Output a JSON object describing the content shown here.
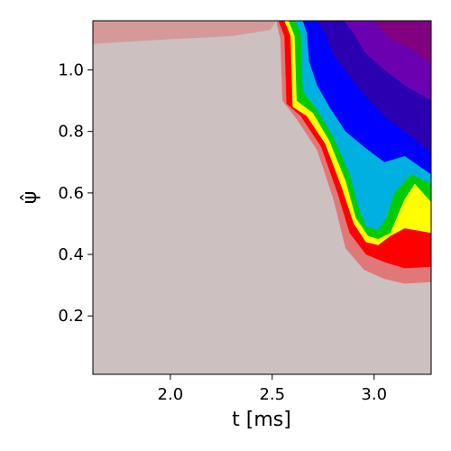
{
  "chart_data": {
    "type": "heatmap",
    "title": "",
    "xlabel": "t [ms]",
    "ylabel": "ψ̂",
    "xlim": [
      1.62,
      3.28
    ],
    "ylim": [
      0.01,
      1.16
    ],
    "grid": false,
    "legend": "none",
    "x_ticks": [
      {
        "value": 2.0,
        "label": "2.0"
      },
      {
        "value": 2.5,
        "label": "2.5"
      },
      {
        "value": 3.0,
        "label": "3.0"
      }
    ],
    "y_ticks": [
      {
        "value": 0.2,
        "label": "0.2"
      },
      {
        "value": 0.4,
        "label": "0.4"
      },
      {
        "value": 0.6,
        "label": "0.6"
      },
      {
        "value": 0.8,
        "label": "0.8"
      },
      {
        "value": 1.0,
        "label": "1.0"
      }
    ],
    "colormap": [
      "#ccc0c0",
      "#d49a9a",
      "#ff0000",
      "#ffff00",
      "#00cc00",
      "#0000ff",
      "#800080"
    ],
    "background_color": "#ccc0c0",
    "bands": [
      {
        "name": "",
        "color": "#d49a9a",
        "points": [
          [
            1.62,
            1.16
          ],
          [
            2.52,
            1.16
          ],
          [
            2.49,
            1.13
          ],
          [
            2.3,
            1.11
          ],
          [
            2.0,
            1.1
          ],
          [
            1.62,
            1.085
          ]
        ]
      },
      {
        "name": "",
        "color": "#e07878",
        "points": [
          [
            2.52,
            1.16
          ],
          [
            3.28,
            1.16
          ],
          [
            3.28,
            0.31
          ],
          [
            3.15,
            0.305
          ],
          [
            3.05,
            0.32
          ],
          [
            2.95,
            0.35
          ],
          [
            2.86,
            0.42
          ],
          [
            2.8,
            0.58
          ],
          [
            2.72,
            0.74
          ],
          [
            2.62,
            0.84
          ],
          [
            2.55,
            0.9
          ],
          [
            2.54,
            1.1
          ]
        ]
      },
      {
        "name": "",
        "color": "#ff0000",
        "points": [
          [
            2.53,
            1.16
          ],
          [
            3.28,
            1.16
          ],
          [
            3.28,
            0.36
          ],
          [
            3.15,
            0.355
          ],
          [
            3.05,
            0.375
          ],
          [
            2.96,
            0.4
          ],
          [
            2.88,
            0.47
          ],
          [
            2.82,
            0.6
          ],
          [
            2.74,
            0.75
          ],
          [
            2.64,
            0.85
          ],
          [
            2.57,
            0.89
          ],
          [
            2.56,
            1.11
          ]
        ]
      },
      {
        "name": "",
        "color": "#ffff00",
        "points": [
          [
            2.56,
            1.16
          ],
          [
            3.28,
            1.16
          ],
          [
            3.28,
            0.47
          ],
          [
            3.15,
            0.485
          ],
          [
            3.08,
            0.46
          ],
          [
            3.02,
            0.43
          ],
          [
            2.96,
            0.44
          ],
          [
            2.9,
            0.5
          ],
          [
            2.84,
            0.62
          ],
          [
            2.76,
            0.76
          ],
          [
            2.67,
            0.85
          ],
          [
            2.6,
            0.88
          ],
          [
            2.59,
            1.11
          ]
        ]
      },
      {
        "name": "",
        "color": "#00cc00",
        "points": [
          [
            2.58,
            1.16
          ],
          [
            3.28,
            1.16
          ],
          [
            3.28,
            0.57
          ],
          [
            3.2,
            0.63
          ],
          [
            3.15,
            0.58
          ],
          [
            3.08,
            0.47
          ],
          [
            3.02,
            0.45
          ],
          [
            2.97,
            0.46
          ],
          [
            2.91,
            0.52
          ],
          [
            2.86,
            0.64
          ],
          [
            2.78,
            0.77
          ],
          [
            2.7,
            0.86
          ],
          [
            2.62,
            0.9
          ],
          [
            2.61,
            1.11
          ]
        ]
      },
      {
        "name": "",
        "color": "#00b0e0",
        "points": [
          [
            2.61,
            1.16
          ],
          [
            3.28,
            1.16
          ],
          [
            3.28,
            0.63
          ],
          [
            3.18,
            0.66
          ],
          [
            3.1,
            0.6
          ],
          [
            3.06,
            0.52
          ],
          [
            3.02,
            0.48
          ],
          [
            2.96,
            0.49
          ],
          [
            2.92,
            0.56
          ],
          [
            2.88,
            0.66
          ],
          [
            2.8,
            0.78
          ],
          [
            2.72,
            0.87
          ],
          [
            2.65,
            0.93
          ],
          [
            2.64,
            1.12
          ]
        ]
      },
      {
        "name": "",
        "color": "#0000ff",
        "points": [
          [
            2.65,
            1.16
          ],
          [
            3.28,
            1.16
          ],
          [
            3.28,
            0.66
          ],
          [
            3.15,
            0.72
          ],
          [
            3.05,
            0.7
          ],
          [
            2.95,
            0.75
          ],
          [
            2.86,
            0.8
          ],
          [
            2.78,
            0.88
          ],
          [
            2.72,
            0.95
          ],
          [
            2.68,
            1.03
          ],
          [
            2.67,
            1.12
          ]
        ]
      },
      {
        "name": "",
        "color": "#2a00b0",
        "points": [
          [
            2.72,
            1.16
          ],
          [
            3.28,
            1.16
          ],
          [
            3.28,
            0.73
          ],
          [
            3.15,
            0.8
          ],
          [
            3.05,
            0.85
          ],
          [
            2.95,
            0.92
          ],
          [
            2.88,
            0.98
          ],
          [
            2.8,
            1.05
          ],
          [
            2.76,
            1.12
          ]
        ]
      },
      {
        "name": "",
        "color": "#6a00b0",
        "points": [
          [
            2.85,
            1.16
          ],
          [
            3.28,
            1.16
          ],
          [
            3.28,
            0.9
          ],
          [
            3.15,
            0.95
          ],
          [
            3.05,
            1.0
          ],
          [
            2.95,
            1.06
          ],
          [
            2.9,
            1.12
          ]
        ]
      },
      {
        "name": "",
        "color": "#800080",
        "points": [
          [
            3.0,
            1.16
          ],
          [
            3.28,
            1.16
          ],
          [
            3.28,
            1.02
          ],
          [
            3.18,
            1.07
          ],
          [
            3.08,
            1.1
          ]
        ]
      }
    ]
  }
}
